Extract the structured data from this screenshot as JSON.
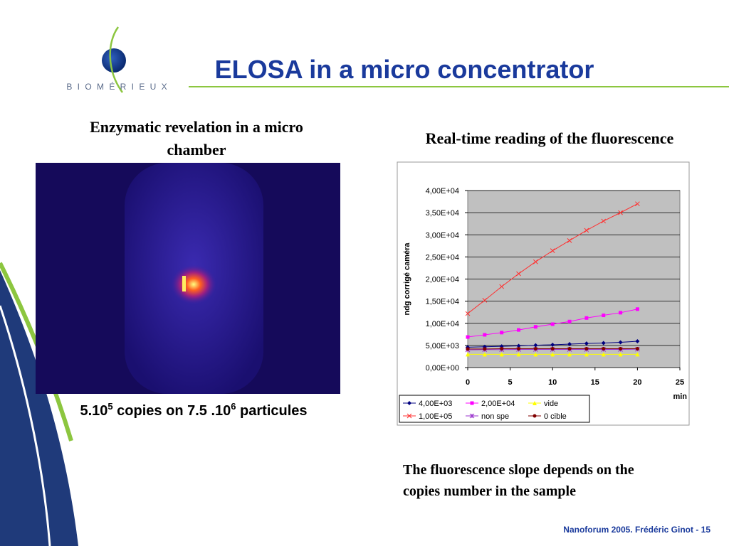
{
  "title": "ELOSA in a micro concentrator",
  "logo": "B I O M É R I E U X",
  "left_heading": "Enzymatic revelation in a micro chamber",
  "image_caption": [
    "5.10",
    "5",
    " copies on 7.5 .10",
    "6",
    " particules"
  ],
  "right_heading": "Real-time reading of the fluorescence",
  "note": [
    "The fluorescence slope depends on the",
    "copies number in the sample"
  ],
  "footer": "Nanoforum 2005. Frédéric Ginot - 15",
  "chart_data": {
    "type": "line",
    "x": [
      0,
      2,
      4,
      6,
      8,
      10,
      12,
      14,
      16,
      18,
      20
    ],
    "series": [
      {
        "name": "4,00E+03",
        "color": "#000080",
        "marker": "diamond",
        "values": [
          4600,
          4700,
          4800,
          4900,
          5050,
          5150,
          5300,
          5450,
          5550,
          5700,
          5950
        ]
      },
      {
        "name": "2,00E+04",
        "color": "#ff00ff",
        "marker": "square",
        "values": [
          6900,
          7400,
          7900,
          8500,
          9200,
          9800,
          10400,
          11200,
          11800,
          12400,
          13200
        ]
      },
      {
        "name": "vide",
        "color": "#ffff00",
        "marker": "triangle",
        "values": [
          3000,
          3000,
          3000,
          3000,
          3000,
          3000,
          3000,
          3000,
          3000,
          3000,
          3000
        ]
      },
      {
        "name": "1,00E+05",
        "color": "#ff3030",
        "marker": "x",
        "values": [
          12200,
          15200,
          18300,
          21200,
          23900,
          26400,
          28700,
          31000,
          33100,
          35000,
          37000
        ]
      },
      {
        "name": "non spe",
        "color": "#9933cc",
        "marker": "star",
        "values": [
          4000,
          4050,
          4050,
          4100,
          4100,
          4100,
          4100,
          4100,
          4100,
          4100,
          4150
        ]
      },
      {
        "name": "0 cible",
        "color": "#800000",
        "marker": "circle",
        "values": [
          4200,
          4200,
          4250,
          4250,
          4250,
          4250,
          4250,
          4250,
          4250,
          4250,
          4250
        ]
      }
    ],
    "xlim": [
      0,
      25
    ],
    "xticks": [
      0,
      5,
      10,
      15,
      20,
      25
    ],
    "ylim": [
      0,
      40000
    ],
    "yticks": [
      {
        "value": 0,
        "label": "0,00E+00"
      },
      {
        "value": 5000,
        "label": "5,00E+03"
      },
      {
        "value": 10000,
        "label": "1,00E+04"
      },
      {
        "value": 15000,
        "label": "1,50E+04"
      },
      {
        "value": 20000,
        "label": "2,00E+04"
      },
      {
        "value": 25000,
        "label": "2,50E+04"
      },
      {
        "value": 30000,
        "label": "3,00E+04"
      },
      {
        "value": 35000,
        "label": "3,50E+04"
      },
      {
        "value": 40000,
        "label": "4,00E+04"
      }
    ],
    "xlabel": "min",
    "ylabel": "ndg corrigé caméra",
    "grid": true,
    "legend": "bottom"
  }
}
